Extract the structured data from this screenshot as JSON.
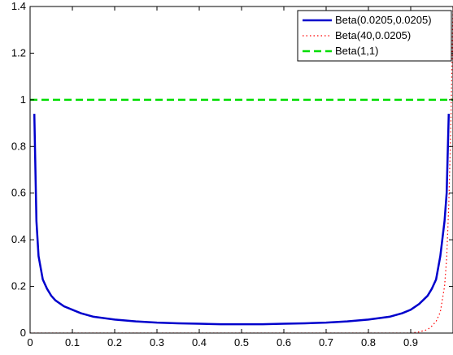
{
  "chart_data": {
    "type": "line",
    "title": "",
    "xlabel": "",
    "ylabel": "",
    "xlim": [
      0,
      1
    ],
    "ylim": [
      0,
      1.4
    ],
    "grid": false,
    "legend_position": "top-right",
    "x_ticks": [
      "0",
      "0.1",
      "0.2",
      "0.3",
      "0.4",
      "0.5",
      "0.6",
      "0.7",
      "0.8",
      "0.9"
    ],
    "x_tick_values": [
      0,
      0.1,
      0.2,
      0.3,
      0.4,
      0.5,
      0.6,
      0.7,
      0.8,
      0.9
    ],
    "y_ticks": [
      "0",
      "0.2",
      "0.4",
      "0.6",
      "0.8",
      "1",
      "1.2",
      "1.4"
    ],
    "y_tick_values": [
      0,
      0.2,
      0.4,
      0.6,
      0.8,
      1,
      1.2,
      1.4
    ],
    "series": [
      {
        "name": "Beta(0.0205,0.0205)",
        "color": "#0000cc",
        "style": "solid",
        "x": [
          0.01,
          0.015,
          0.02,
          0.03,
          0.04,
          0.05,
          0.06,
          0.08,
          0.1,
          0.12,
          0.15,
          0.2,
          0.25,
          0.3,
          0.35,
          0.4,
          0.45,
          0.5,
          0.55,
          0.6,
          0.65,
          0.7,
          0.75,
          0.8,
          0.85,
          0.88,
          0.9,
          0.92,
          0.94,
          0.95,
          0.96,
          0.97,
          0.98,
          0.985,
          0.99
        ],
        "y": [
          0.94,
          0.48,
          0.33,
          0.23,
          0.19,
          0.16,
          0.14,
          0.115,
          0.1,
          0.085,
          0.07,
          0.058,
          0.05,
          0.045,
          0.042,
          0.04,
          0.038,
          0.038,
          0.038,
          0.04,
          0.042,
          0.045,
          0.05,
          0.058,
          0.07,
          0.085,
          0.1,
          0.125,
          0.16,
          0.19,
          0.23,
          0.33,
          0.48,
          0.6,
          0.94
        ]
      },
      {
        "name": "Beta(40,0.0205)",
        "color": "#ff0000",
        "style": "dotted",
        "x": [
          0,
          0.9,
          0.92,
          0.94,
          0.95,
          0.96,
          0.97,
          0.98,
          0.985,
          0.99,
          0.995,
          1.0
        ],
        "y": [
          0,
          0.0,
          0.005,
          0.015,
          0.03,
          0.05,
          0.09,
          0.2,
          0.32,
          0.55,
          0.9,
          1.4
        ]
      },
      {
        "name": "Beta(1,1)",
        "color": "#00dd00",
        "style": "dashed",
        "x": [
          0,
          1
        ],
        "y": [
          1,
          1
        ]
      }
    ]
  }
}
